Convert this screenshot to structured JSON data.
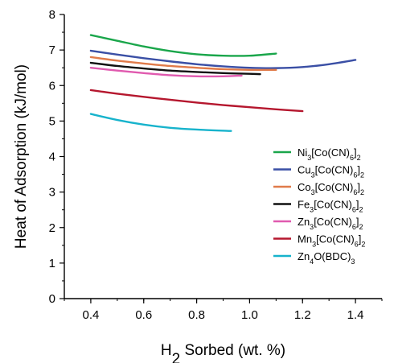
{
  "chart_data": {
    "type": "line",
    "title": "",
    "xlabel_parts": [
      {
        "t": "H",
        "sub": false
      },
      {
        "t": "2",
        "sub": true
      },
      {
        "t": " Sorbed (wt. %)",
        "sub": false
      }
    ],
    "ylabel": "Heat of Adsorption (kJ/mol)",
    "xlim": [
      0.3,
      1.5
    ],
    "ylim": [
      0,
      8
    ],
    "xticks": [
      "0.4",
      "0.6",
      "0.8",
      "1.0",
      "1.2",
      "1.4"
    ],
    "yticks": [
      "0",
      "1",
      "2",
      "3",
      "4",
      "5",
      "6",
      "7",
      "8"
    ],
    "grid": false,
    "legend_position": "bottom-right",
    "series": [
      {
        "key": "ni",
        "color": "#1aa64b",
        "label_parts": [
          {
            "t": "Ni",
            "sub": false
          },
          {
            "t": "3",
            "sub": true
          },
          {
            "t": "[Co(CN)",
            "sub": false
          },
          {
            "t": "6",
            "sub": true
          },
          {
            "t": "]",
            "sub": false
          },
          {
            "t": "2",
            "sub": true
          }
        ],
        "x": [
          0.4,
          0.5,
          0.6,
          0.7,
          0.8,
          0.9,
          1.0,
          1.1
        ],
        "y": [
          7.42,
          7.26,
          7.1,
          6.97,
          6.88,
          6.84,
          6.84,
          6.9
        ]
      },
      {
        "key": "cu",
        "color": "#3a4fa5",
        "label_parts": [
          {
            "t": "Cu",
            "sub": false
          },
          {
            "t": "3",
            "sub": true
          },
          {
            "t": "[Co(CN)",
            "sub": false
          },
          {
            "t": "6",
            "sub": true
          },
          {
            "t": "]",
            "sub": false
          },
          {
            "t": "2",
            "sub": true
          }
        ],
        "x": [
          0.4,
          0.5,
          0.6,
          0.7,
          0.8,
          0.9,
          1.0,
          1.1,
          1.2,
          1.3,
          1.4
        ],
        "y": [
          6.98,
          6.87,
          6.77,
          6.68,
          6.6,
          6.54,
          6.5,
          6.49,
          6.52,
          6.6,
          6.72
        ]
      },
      {
        "key": "co",
        "color": "#e07b4a",
        "label_parts": [
          {
            "t": "Co",
            "sub": false
          },
          {
            "t": "3",
            "sub": true
          },
          {
            "t": "[Co(CN)",
            "sub": false
          },
          {
            "t": "6",
            "sub": true
          },
          {
            "t": "]",
            "sub": false
          },
          {
            "t": "2",
            "sub": true
          }
        ],
        "x": [
          0.4,
          0.5,
          0.6,
          0.7,
          0.8,
          0.9,
          1.0,
          1.1
        ],
        "y": [
          6.8,
          6.7,
          6.62,
          6.55,
          6.5,
          6.46,
          6.44,
          6.44
        ]
      },
      {
        "key": "fe",
        "color": "#111111",
        "label_parts": [
          {
            "t": "Fe",
            "sub": false
          },
          {
            "t": "3",
            "sub": true
          },
          {
            "t": "[Co(CN)",
            "sub": false
          },
          {
            "t": "6",
            "sub": true
          },
          {
            "t": "]",
            "sub": false
          },
          {
            "t": "2",
            "sub": true
          }
        ],
        "x": [
          0.4,
          0.5,
          0.6,
          0.7,
          0.8,
          0.9,
          1.0,
          1.04
        ],
        "y": [
          6.64,
          6.55,
          6.48,
          6.42,
          6.38,
          6.35,
          6.33,
          6.32
        ]
      },
      {
        "key": "zn",
        "color": "#e05aaf",
        "label_parts": [
          {
            "t": "Zn",
            "sub": false
          },
          {
            "t": "3",
            "sub": true
          },
          {
            "t": "[Co(CN)",
            "sub": false
          },
          {
            "t": "6",
            "sub": true
          },
          {
            "t": "]",
            "sub": false
          },
          {
            "t": "2",
            "sub": true
          }
        ],
        "x": [
          0.4,
          0.5,
          0.6,
          0.7,
          0.8,
          0.9,
          0.97
        ],
        "y": [
          6.5,
          6.42,
          6.35,
          6.29,
          6.26,
          6.26,
          6.28
        ]
      },
      {
        "key": "mn",
        "color": "#b5172e",
        "label_parts": [
          {
            "t": "Mn",
            "sub": false
          },
          {
            "t": "3",
            "sub": true
          },
          {
            "t": "[Co(CN)",
            "sub": false
          },
          {
            "t": "6",
            "sub": true
          },
          {
            "t": "]",
            "sub": false
          },
          {
            "t": "2",
            "sub": true
          }
        ],
        "x": [
          0.4,
          0.5,
          0.6,
          0.7,
          0.8,
          0.9,
          1.0,
          1.1,
          1.2
        ],
        "y": [
          5.87,
          5.77,
          5.68,
          5.6,
          5.52,
          5.45,
          5.39,
          5.33,
          5.28
        ]
      },
      {
        "key": "zno",
        "color": "#17b3cc",
        "label_parts": [
          {
            "t": "Zn",
            "sub": false
          },
          {
            "t": "4",
            "sub": true
          },
          {
            "t": "O(BDC)",
            "sub": false
          },
          {
            "t": "3",
            "sub": true
          }
        ],
        "x": [
          0.4,
          0.5,
          0.6,
          0.7,
          0.8,
          0.93
        ],
        "y": [
          5.2,
          5.03,
          4.9,
          4.81,
          4.76,
          4.72
        ]
      }
    ]
  }
}
